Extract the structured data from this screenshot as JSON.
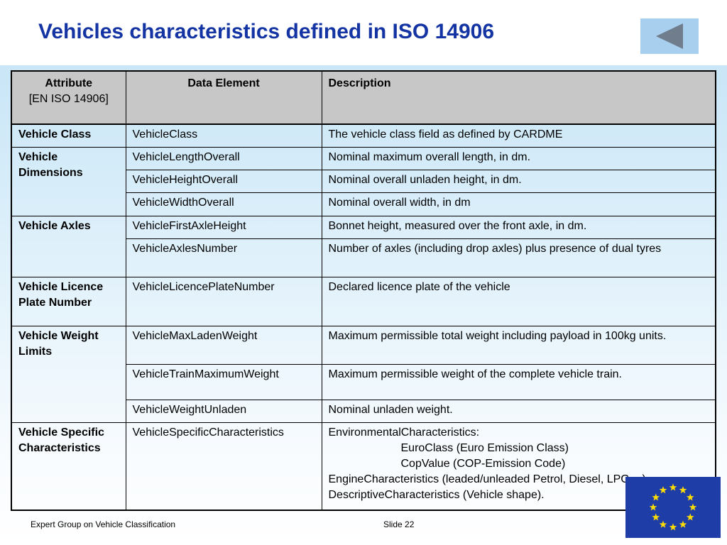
{
  "slide": {
    "title": "Vehicles characteristics defined in ISO 14906",
    "back_button_icon": "left-triangle-icon",
    "footer_left": "Expert Group on Vehicle Classification",
    "footer_right": "Slide 22",
    "flag_icon": "eu-flag-icon"
  },
  "table": {
    "headers": {
      "attribute": "Attribute",
      "attribute_sub": "[EN ISO 14906]",
      "data_element": "Data Element",
      "description": "Description"
    },
    "rows": [
      {
        "attribute": "Vehicle Class",
        "element": "VehicleClass",
        "description": "The vehicle class field as defined by CARDME"
      },
      {
        "attribute": "Vehicle Dimensions",
        "element": "VehicleLengthOverall",
        "description": "Nominal maximum overall length, in dm."
      },
      {
        "element": "VehicleHeightOverall",
        "description": "Nominal overall unladen height, in dm."
      },
      {
        "element": "VehicleWidthOverall",
        "description": "Nominal overall width, in dm"
      },
      {
        "attribute": "Vehicle Axles",
        "element": "VehicleFirstAxleHeight",
        "description": "Bonnet height, measured over the front axle, in dm."
      },
      {
        "element": "VehicleAxlesNumber",
        "description": "Number of axles (including drop axles) plus presence of dual tyres"
      },
      {
        "attribute": "Vehicle Licence Plate Number",
        "element": "VehicleLicencePlateNumber",
        "description": "Declared licence plate of the vehicle"
      },
      {
        "attribute": "Vehicle Weight Limits",
        "element": "VehicleMaxLadenWeight",
        "description": "Maximum permissible total weight including payload in 100kg units."
      },
      {
        "element": "VehicleTrainMaximumWeight",
        "description": "Maximum permissible weight of the complete vehicle train."
      },
      {
        "element": "VehicleWeightUnladen",
        "description": "Nominal unladen weight."
      },
      {
        "attribute": "Vehicle Specific Characteristics",
        "element": "VehicleSpecificCharacteristics",
        "description_lines": [
          "EnvironmentalCharacteristics:",
          "EuroClass   (Euro Emission Class)",
          "CopValue   (COP-Emission Code)",
          "EngineCharacteristics  (leaded/unleaded Petrol, Diesel, LPG, ..)",
          "DescriptiveCharacteristics  (Vehicle shape)."
        ]
      }
    ]
  }
}
